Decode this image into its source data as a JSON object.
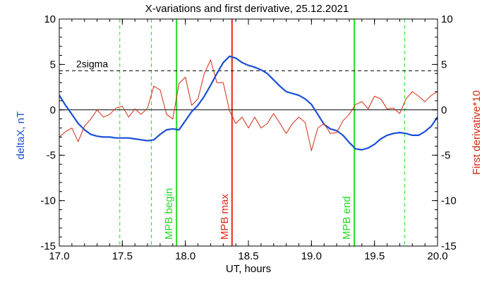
{
  "chart_data": {
    "type": "line",
    "title": "X-variations and first derivative, 25.12.2021",
    "xlabel": "UT, hours",
    "ylabel": "deltaX, nT",
    "ylabel_right": "First derivative*10",
    "xlim": [
      17.0,
      20.0
    ],
    "ylim": [
      -15,
      10
    ],
    "ylim_right": [
      -15,
      10
    ],
    "x_ticks": [
      "17.0",
      "17.5",
      "18.0",
      "18.5",
      "19.0",
      "19.5",
      "20.0"
    ],
    "y_ticks": [
      "10",
      "5",
      "0",
      "-5",
      "-10",
      "-15"
    ],
    "y_ticks_right": [
      "10",
      "5",
      "0",
      "-5",
      "-10",
      "-15"
    ],
    "grid": false,
    "colors": {
      "deltaX": "#1a4fd6",
      "derivative": "#d42a12",
      "mpb_edge": "#22dd22",
      "mpb_max": "#e8261a",
      "axes": "#000000"
    },
    "threshold": {
      "label": "2sigma",
      "value": 4.3
    },
    "zero_line": 0,
    "vertical_markers": [
      {
        "label": "MPB begin",
        "x": 17.93,
        "style": "solid",
        "color": "#22dd22"
      },
      {
        "label": "MPB max",
        "x": 18.37,
        "style": "solid",
        "color": "#e8261a"
      },
      {
        "label": "MPB end",
        "x": 19.34,
        "style": "solid",
        "color": "#22dd22"
      },
      {
        "label": "",
        "x": 17.48,
        "style": "dashed",
        "color": "#22dd22"
      },
      {
        "label": "",
        "x": 17.73,
        "style": "dashed",
        "color": "#22dd22"
      },
      {
        "label": "",
        "x": 19.74,
        "style": "dashed",
        "color": "#22dd22"
      }
    ],
    "series": [
      {
        "axis": "left",
        "x": [
          17.0,
          17.05,
          17.1,
          17.15,
          17.2,
          17.25,
          17.3,
          17.35,
          17.4,
          17.45,
          17.5,
          17.55,
          17.6,
          17.65,
          17.7,
          17.75,
          17.8,
          17.85,
          17.9,
          17.95,
          18.0,
          18.05,
          18.1,
          18.15,
          18.2,
          18.25,
          18.3,
          18.35,
          18.4,
          18.45,
          18.5,
          18.55,
          18.6,
          18.65,
          18.7,
          18.75,
          18.8,
          18.85,
          18.9,
          18.95,
          19.0,
          19.05,
          19.1,
          19.15,
          19.2,
          19.25,
          19.3,
          19.35,
          19.4,
          19.45,
          19.5,
          19.55,
          19.6,
          19.65,
          19.7,
          19.75,
          19.8,
          19.85,
          19.9,
          19.95,
          20.0
        ],
        "values": [
          1.6,
          0.5,
          -0.5,
          -1.5,
          -2.2,
          -2.7,
          -2.9,
          -3.0,
          -3.0,
          -3.1,
          -3.1,
          -3.1,
          -3.2,
          -3.3,
          -3.4,
          -3.3,
          -2.7,
          -2.2,
          -2.1,
          -2.2,
          -1.2,
          -0.2,
          0.5,
          1.5,
          2.7,
          4.0,
          5.2,
          5.9,
          5.7,
          5.2,
          4.9,
          4.7,
          4.4,
          4.0,
          3.3,
          2.6,
          2.0,
          1.8,
          1.6,
          1.2,
          0.6,
          -0.5,
          -1.6,
          -2.1,
          -2.3,
          -2.8,
          -3.6,
          -4.3,
          -4.4,
          -4.2,
          -3.8,
          -3.2,
          -2.8,
          -2.6,
          -2.5,
          -2.6,
          -2.8,
          -2.8,
          -2.4,
          -1.8,
          -0.8
        ]
      },
      {
        "axis": "right",
        "x": [
          17.0,
          17.05,
          17.1,
          17.15,
          17.2,
          17.25,
          17.3,
          17.35,
          17.4,
          17.45,
          17.5,
          17.55,
          17.6,
          17.65,
          17.7,
          17.75,
          17.8,
          17.85,
          17.9,
          17.95,
          18.0,
          18.05,
          18.1,
          18.15,
          18.2,
          18.25,
          18.3,
          18.35,
          18.4,
          18.45,
          18.5,
          18.55,
          18.6,
          18.65,
          18.7,
          18.75,
          18.8,
          18.85,
          18.9,
          18.95,
          19.0,
          19.05,
          19.1,
          19.15,
          19.2,
          19.25,
          19.3,
          19.35,
          19.4,
          19.45,
          19.5,
          19.55,
          19.6,
          19.65,
          19.7,
          19.75,
          19.8,
          19.85,
          19.9,
          19.95,
          20.0
        ],
        "values": [
          -3.0,
          -2.4,
          -2.0,
          -3.5,
          -1.8,
          -1.0,
          0.0,
          -0.8,
          -0.5,
          0.2,
          0.4,
          -0.8,
          0.1,
          -0.5,
          0.2,
          2.6,
          2.2,
          -0.5,
          -1.0,
          2.9,
          3.6,
          0.5,
          1.2,
          4.0,
          5.5,
          3.0,
          3.0,
          -0.1,
          -1.5,
          -0.8,
          -2.0,
          -0.8,
          -2.0,
          -1.5,
          -0.4,
          -1.5,
          -2.6,
          -1.5,
          -0.8,
          -1.4,
          -4.5,
          -2.0,
          -1.5,
          -2.6,
          -2.5,
          -1.2,
          -0.5,
          0.6,
          0.9,
          0.1,
          1.5,
          1.2,
          0.1,
          0.2,
          -0.4,
          1.2,
          2.0,
          1.5,
          0.9,
          1.6,
          2.0
        ]
      }
    ]
  }
}
